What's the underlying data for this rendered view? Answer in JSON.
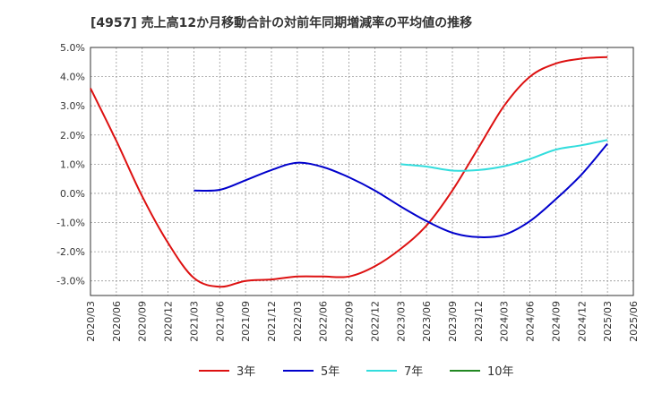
{
  "chart_data": {
    "type": "line",
    "title": "[4957]  売上高12か月移動合計の対前年同期増減率の平均値の推移",
    "xlabel": "",
    "ylabel": "",
    "ylim": [
      -3.5,
      5.0
    ],
    "yticks": [
      5.0,
      4.0,
      3.0,
      2.0,
      1.0,
      0.0,
      -1.0,
      -2.0,
      -3.0
    ],
    "ytick_labels": [
      "5.0%",
      "4.0%",
      "3.0%",
      "2.0%",
      "1.0%",
      "0.0%",
      "-1.0%",
      "-2.0%",
      "-3.0%"
    ],
    "xticks": [
      "2020/03",
      "2020/06",
      "2020/09",
      "2020/12",
      "2021/03",
      "2021/06",
      "2021/09",
      "2021/12",
      "2022/03",
      "2022/06",
      "2022/09",
      "2022/12",
      "2023/03",
      "2023/06",
      "2023/09",
      "2023/12",
      "2024/03",
      "2024/06",
      "2024/09",
      "2024/12",
      "2025/03",
      "2025/06"
    ],
    "grid": true,
    "legend_position": "bottom",
    "series": [
      {
        "name": "3年",
        "color": "#dd1111",
        "points": [
          [
            0,
            3.6
          ],
          [
            1,
            1.8
          ],
          [
            2,
            -0.1
          ],
          [
            3,
            -1.7
          ],
          [
            4,
            -2.9
          ],
          [
            5,
            -3.2
          ],
          [
            6,
            -3.0
          ],
          [
            7,
            -2.95
          ],
          [
            8,
            -2.85
          ],
          [
            9,
            -2.85
          ],
          [
            10,
            -2.85
          ],
          [
            11,
            -2.5
          ],
          [
            12,
            -1.9
          ],
          [
            13,
            -1.1
          ],
          [
            14,
            0.1
          ],
          [
            15,
            1.55
          ],
          [
            16,
            3.0
          ],
          [
            17,
            4.0
          ],
          [
            18,
            4.45
          ],
          [
            19,
            4.62
          ],
          [
            20,
            4.67
          ]
        ]
      },
      {
        "name": "5年",
        "color": "#0000cc",
        "points": [
          [
            4,
            0.1
          ],
          [
            5,
            0.12
          ],
          [
            6,
            0.45
          ],
          [
            7,
            0.8
          ],
          [
            8,
            1.05
          ],
          [
            9,
            0.9
          ],
          [
            10,
            0.55
          ],
          [
            11,
            0.1
          ],
          [
            12,
            -0.45
          ],
          [
            13,
            -0.95
          ],
          [
            14,
            -1.35
          ],
          [
            15,
            -1.5
          ],
          [
            16,
            -1.42
          ],
          [
            17,
            -0.95
          ],
          [
            18,
            -0.2
          ],
          [
            19,
            0.65
          ],
          [
            20,
            1.7
          ]
        ]
      },
      {
        "name": "7年",
        "color": "#33dddd",
        "points": [
          [
            12,
            1.0
          ],
          [
            13,
            0.92
          ],
          [
            14,
            0.78
          ],
          [
            15,
            0.8
          ],
          [
            16,
            0.93
          ],
          [
            17,
            1.18
          ],
          [
            18,
            1.5
          ],
          [
            19,
            1.65
          ],
          [
            20,
            1.83
          ]
        ]
      },
      {
        "name": "10年",
        "color": "#228822",
        "points": []
      }
    ]
  }
}
